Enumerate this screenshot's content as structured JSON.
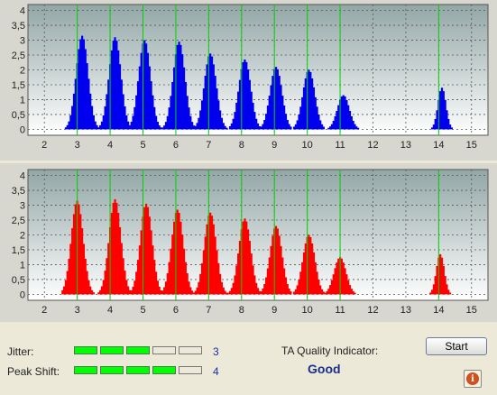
{
  "chart_data": [
    {
      "type": "bar",
      "series": [
        {
          "name": "",
          "color": "#0000ee"
        }
      ],
      "xlim": [
        1.5,
        15.5
      ],
      "ylim": [
        -0.2,
        4.2
      ],
      "x_ticks": [
        "2",
        "3",
        "4",
        "5",
        "6",
        "7",
        "8",
        "9",
        "10",
        "11",
        "12",
        "13",
        "14",
        "15"
      ],
      "y_ticks": [
        "0",
        "0,5",
        "1",
        "1,5",
        "2",
        "2,5",
        "3",
        "3,5",
        "4"
      ],
      "marker_lines": [
        3,
        4,
        5,
        6,
        7,
        8,
        9,
        10,
        11,
        14
      ],
      "peaks": [
        {
          "x": 3.15,
          "height": 3.15
        },
        {
          "x": 4.15,
          "height": 3.1
        },
        {
          "x": 5.05,
          "height": 3.0
        },
        {
          "x": 6.1,
          "height": 2.95
        },
        {
          "x": 7.05,
          "height": 2.55
        },
        {
          "x": 8.1,
          "height": 2.35
        },
        {
          "x": 9.05,
          "height": 2.1
        },
        {
          "x": 10.05,
          "height": 2.0
        },
        {
          "x": 11.1,
          "height": 1.15
        },
        {
          "x": 14.1,
          "height": 1.4
        }
      ],
      "grid": true
    },
    {
      "type": "bar",
      "series": [
        {
          "name": "",
          "color": "#ff0000"
        }
      ],
      "xlim": [
        1.5,
        15.5
      ],
      "ylim": [
        -0.2,
        4.2
      ],
      "x_ticks": [
        "2",
        "3",
        "4",
        "5",
        "6",
        "7",
        "8",
        "9",
        "10",
        "11",
        "12",
        "13",
        "14",
        "15"
      ],
      "y_ticks": [
        "0",
        "0,5",
        "1",
        "1,5",
        "2",
        "2,5",
        "3",
        "3,5",
        "4"
      ],
      "marker_lines": [
        3,
        4,
        5,
        6,
        7,
        8,
        9,
        10,
        11,
        14
      ],
      "peaks": [
        {
          "x": 3.0,
          "height": 3.15
        },
        {
          "x": 4.15,
          "height": 3.2
        },
        {
          "x": 5.1,
          "height": 3.05
        },
        {
          "x": 6.05,
          "height": 2.85
        },
        {
          "x": 7.05,
          "height": 2.75
        },
        {
          "x": 8.1,
          "height": 2.55
        },
        {
          "x": 9.05,
          "height": 2.3
        },
        {
          "x": 10.05,
          "height": 2.0
        },
        {
          "x": 11.0,
          "height": 1.25
        },
        {
          "x": 14.05,
          "height": 1.35
        }
      ],
      "grid": true
    }
  ],
  "status": {
    "jitter_label": "Jitter:",
    "jitter_value": "3",
    "jitter_level": 3,
    "peak_label": "Peak Shift:",
    "peak_value": "4",
    "peak_level": 4,
    "meter_segments": 5,
    "ta_label": "TA Quality Indicator:",
    "ta_value": "Good",
    "start_label": "Start",
    "info_icon": "info-icon"
  }
}
